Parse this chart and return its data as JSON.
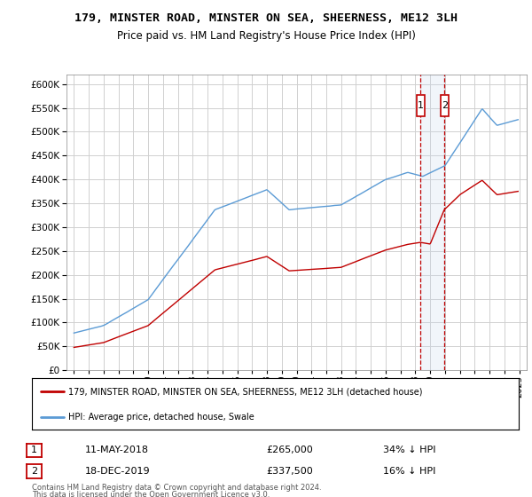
{
  "title": "179, MINSTER ROAD, MINSTER ON SEA, SHEERNESS, ME12 3LH",
  "subtitle": "Price paid vs. HM Land Registry's House Price Index (HPI)",
  "legend_line1": "179, MINSTER ROAD, MINSTER ON SEA, SHEERNESS, ME12 3LH (detached house)",
  "legend_line2": "HPI: Average price, detached house, Swale",
  "footer1": "Contains HM Land Registry data © Crown copyright and database right 2024.",
  "footer2": "This data is licensed under the Open Government Licence v3.0.",
  "transactions": [
    {
      "num": 1,
      "date": "11-MAY-2018",
      "price": "£265,000",
      "pct": "34% ↓ HPI",
      "year": 2018.36
    },
    {
      "num": 2,
      "date": "18-DEC-2019",
      "price": "£337,500",
      "pct": "16% ↓ HPI",
      "year": 2019.96
    }
  ],
  "ylim": [
    0,
    620000
  ],
  "yticks": [
    0,
    50000,
    100000,
    150000,
    200000,
    250000,
    300000,
    350000,
    400000,
    450000,
    500000,
    550000,
    600000
  ],
  "xlim": [
    1994.5,
    2025.5
  ],
  "hpi_color": "#5b9bd5",
  "price_color": "#c00000",
  "marker_color": "#c00000",
  "shade_color": "#c8d8ed",
  "grid_color": "#d0d0d0",
  "background_color": "#ffffff"
}
